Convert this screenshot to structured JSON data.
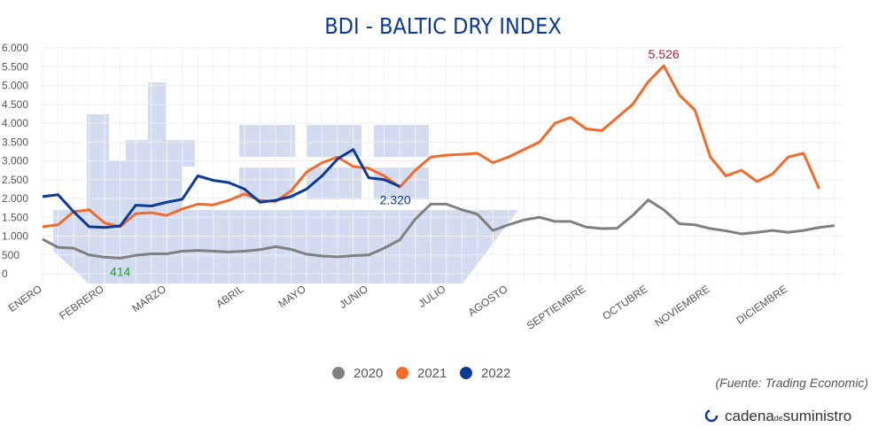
{
  "chart_data": {
    "type": "line",
    "title": "BDI - BALTIC DRY INDEX",
    "categories": [
      "ENERO",
      null,
      null,
      null,
      "FEBRERO",
      null,
      null,
      null,
      "MARZO",
      null,
      null,
      null,
      null,
      "ABRIL",
      null,
      null,
      null,
      "MAYO",
      null,
      null,
      null,
      "JUNIO",
      null,
      null,
      null,
      null,
      "JULIO",
      null,
      null,
      null,
      "AGOSTO",
      null,
      null,
      null,
      null,
      "SEPTIEMBRE",
      null,
      null,
      null,
      "OCTUBRE",
      null,
      null,
      null,
      "NOVIEMBRE",
      null,
      null,
      null,
      null,
      "DICIEMBRE",
      null,
      null,
      null
    ],
    "series": [
      {
        "name": "2020",
        "color": "#808080",
        "label_color": "#22a022",
        "values": [
          920,
          700,
          680,
          500,
          440,
          414,
          490,
          530,
          530,
          600,
          620,
          600,
          580,
          600,
          640,
          720,
          650,
          520,
          470,
          450,
          480,
          500,
          680,
          900,
          1450,
          1850,
          1850,
          1700,
          1580,
          1150,
          1300,
          1430,
          1500,
          1390,
          1390,
          1240,
          1200,
          1210,
          1550,
          1960,
          1700,
          1330,
          1300,
          1200,
          1140,
          1060,
          1100,
          1150,
          1100,
          1150,
          1230,
          1280
        ],
        "value_labels": [
          null,
          null,
          null,
          null,
          null,
          "414",
          null,
          null,
          null,
          null,
          null,
          null,
          null,
          null,
          null,
          null,
          null,
          null,
          null,
          null,
          null,
          null,
          null,
          null,
          null,
          null,
          null,
          null,
          null,
          null,
          null,
          null,
          null,
          null,
          null,
          null,
          null,
          null,
          null,
          null,
          null,
          null,
          null,
          null,
          null,
          null,
          null,
          null,
          null,
          null,
          null,
          null
        ]
      },
      {
        "name": "2021",
        "color": "#f26b2a",
        "label_color": "#b0203a",
        "values": [
          1250,
          1300,
          1650,
          1700,
          1350,
          1250,
          1600,
          1620,
          1550,
          1720,
          1850,
          1830,
          1950,
          2120,
          1950,
          1920,
          2200,
          2700,
          2950,
          3100,
          2850,
          2800,
          2600,
          2300,
          2750,
          3100,
          3150,
          3170,
          3200,
          2950,
          3100,
          3300,
          3500,
          4000,
          4150,
          3850,
          3800,
          4150,
          4500,
          5100,
          5526,
          4750,
          4350,
          3100,
          2600,
          2750,
          2450,
          2650,
          3100,
          3200,
          2260,
          null
        ],
        "value_labels": [
          null,
          null,
          null,
          null,
          null,
          null,
          null,
          null,
          null,
          null,
          null,
          null,
          null,
          null,
          null,
          null,
          null,
          null,
          null,
          null,
          null,
          null,
          null,
          null,
          null,
          null,
          null,
          null,
          null,
          null,
          null,
          null,
          null,
          null,
          null,
          null,
          null,
          null,
          null,
          null,
          "5.526",
          null,
          null,
          null,
          null,
          null,
          null,
          null,
          null,
          null,
          null,
          null
        ]
      },
      {
        "name": "2022",
        "color": "#0c3a96",
        "label_color": "#0c3a96",
        "values": [
          2050,
          2100,
          1650,
          1250,
          1230,
          1270,
          1820,
          1800,
          1900,
          1980,
          2600,
          2480,
          2420,
          2250,
          1900,
          1950,
          2050,
          2250,
          2600,
          3050,
          3300,
          2550,
          2500,
          2320,
          null,
          null,
          null,
          null,
          null,
          null,
          null,
          null,
          null,
          null,
          null,
          null,
          null,
          null,
          null,
          null,
          null,
          null,
          null,
          null,
          null,
          null,
          null,
          null,
          null,
          null,
          null,
          null
        ],
        "value_labels": [
          null,
          null,
          null,
          null,
          null,
          null,
          null,
          null,
          null,
          null,
          null,
          null,
          null,
          null,
          null,
          null,
          null,
          null,
          null,
          null,
          null,
          null,
          null,
          "2.320",
          null,
          null,
          null,
          null,
          null,
          null,
          null,
          null,
          null,
          null,
          null,
          null,
          null,
          null,
          null,
          null,
          null,
          null,
          null,
          null,
          null,
          null,
          null,
          null,
          null,
          null,
          null,
          null
        ]
      }
    ],
    "ylim": [
      0,
      6000
    ],
    "yticks": [
      0,
      500,
      {
        "value": 1000,
        "label": "1.000"
      },
      {
        "value": 1500,
        "label": "1.500"
      },
      {
        "value": 2000,
        "label": "2.000"
      },
      {
        "value": 2500,
        "label": "2.500"
      },
      {
        "value": 3000,
        "label": "3.000"
      },
      {
        "value": 3500,
        "label": "3.500"
      },
      {
        "value": 4000,
        "label": "4.000"
      },
      {
        "value": 4500,
        "label": "4.500"
      },
      {
        "value": 5000,
        "label": "5.000"
      },
      {
        "value": 5500,
        "label": "5.500"
      },
      {
        "value": 6000,
        "label": "6.000"
      }
    ],
    "grid": true,
    "source": "(Fuente: Trading Economic)",
    "brand": [
      "cadena",
      "de",
      "suministro"
    ]
  }
}
